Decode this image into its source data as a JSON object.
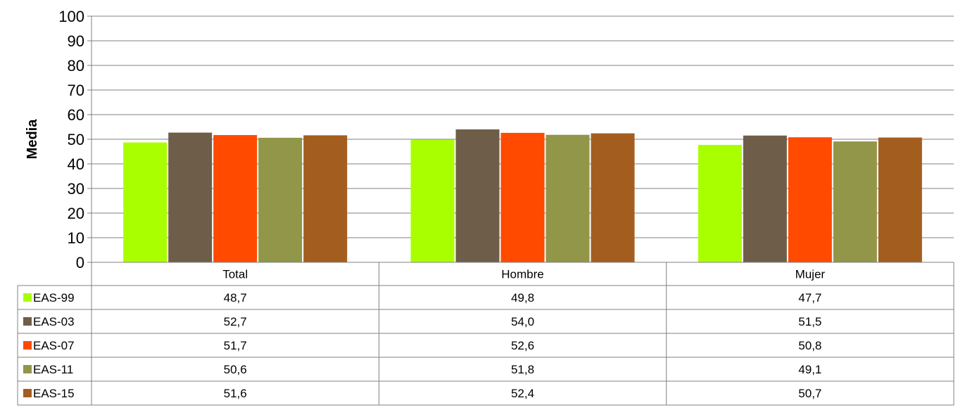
{
  "chart_data": {
    "type": "bar",
    "ylabel": "Media",
    "ylim": [
      0,
      100
    ],
    "yticks": [
      0,
      10,
      20,
      30,
      40,
      50,
      60,
      70,
      80,
      90,
      100
    ],
    "grid": true,
    "legend": "table-below",
    "categories": [
      "Total",
      "Hombre",
      "Mujer"
    ],
    "series": [
      {
        "name": "EAS-99",
        "color": "#a9ff00",
        "values": [
          48.7,
          49.8,
          47.7
        ],
        "labels": [
          "48,7",
          "49,8",
          "47,7"
        ]
      },
      {
        "name": "EAS-03",
        "color": "#6e5e49",
        "values": [
          52.7,
          54.0,
          51.5
        ],
        "labels": [
          "52,7",
          "54,0",
          "51,5"
        ]
      },
      {
        "name": "EAS-07",
        "color": "#ff4a00",
        "values": [
          51.7,
          52.6,
          50.8
        ],
        "labels": [
          "51,7",
          "52,6",
          "50,8"
        ]
      },
      {
        "name": "EAS-11",
        "color": "#919649",
        "values": [
          50.6,
          51.8,
          49.1
        ],
        "labels": [
          "50,6",
          "51,8",
          "49,1"
        ]
      },
      {
        "name": "EAS-15",
        "color": "#a35e1f",
        "values": [
          51.6,
          52.4,
          50.7
        ],
        "labels": [
          "51,6",
          "52,4",
          "50,7"
        ]
      }
    ]
  }
}
